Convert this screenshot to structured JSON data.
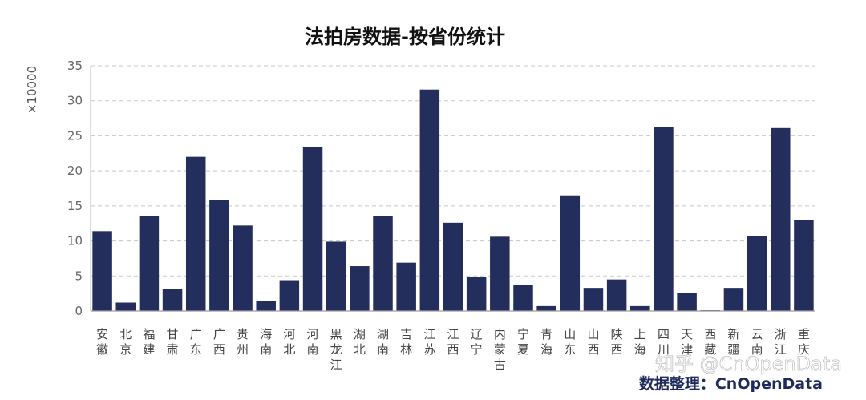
{
  "chart_data": {
    "type": "bar",
    "title": "法拍房数据-按省份统计",
    "ylabel": "×10000",
    "ylim": [
      0,
      35
    ],
    "yticks": [
      0,
      5,
      10,
      15,
      20,
      25,
      30,
      35
    ],
    "grid": true,
    "bar_color": "#232e5c",
    "categories": [
      "安徽",
      "北京",
      "福建",
      "甘肃",
      "广东",
      "广西",
      "贵州",
      "海南",
      "河北",
      "河南",
      "黑龙江",
      "湖北",
      "湖南",
      "吉林",
      "江苏",
      "江西",
      "辽宁",
      "内蒙古",
      "宁夏",
      "青海",
      "山东",
      "山西",
      "陕西",
      "上海",
      "四川",
      "天津",
      "西藏",
      "新疆",
      "云南",
      "浙江",
      "重庆"
    ],
    "values": [
      11.4,
      1.2,
      13.5,
      3.1,
      22.0,
      15.8,
      12.2,
      1.4,
      4.4,
      23.4,
      9.9,
      6.4,
      13.6,
      6.9,
      31.6,
      12.6,
      4.9,
      10.6,
      3.7,
      0.7,
      16.5,
      3.3,
      4.5,
      0.7,
      26.3,
      2.6,
      0.1,
      3.3,
      10.7,
      26.1,
      13.0
    ]
  },
  "credit": "数据整理：CnOpenData",
  "watermark": "知乎 @CnOpenData"
}
